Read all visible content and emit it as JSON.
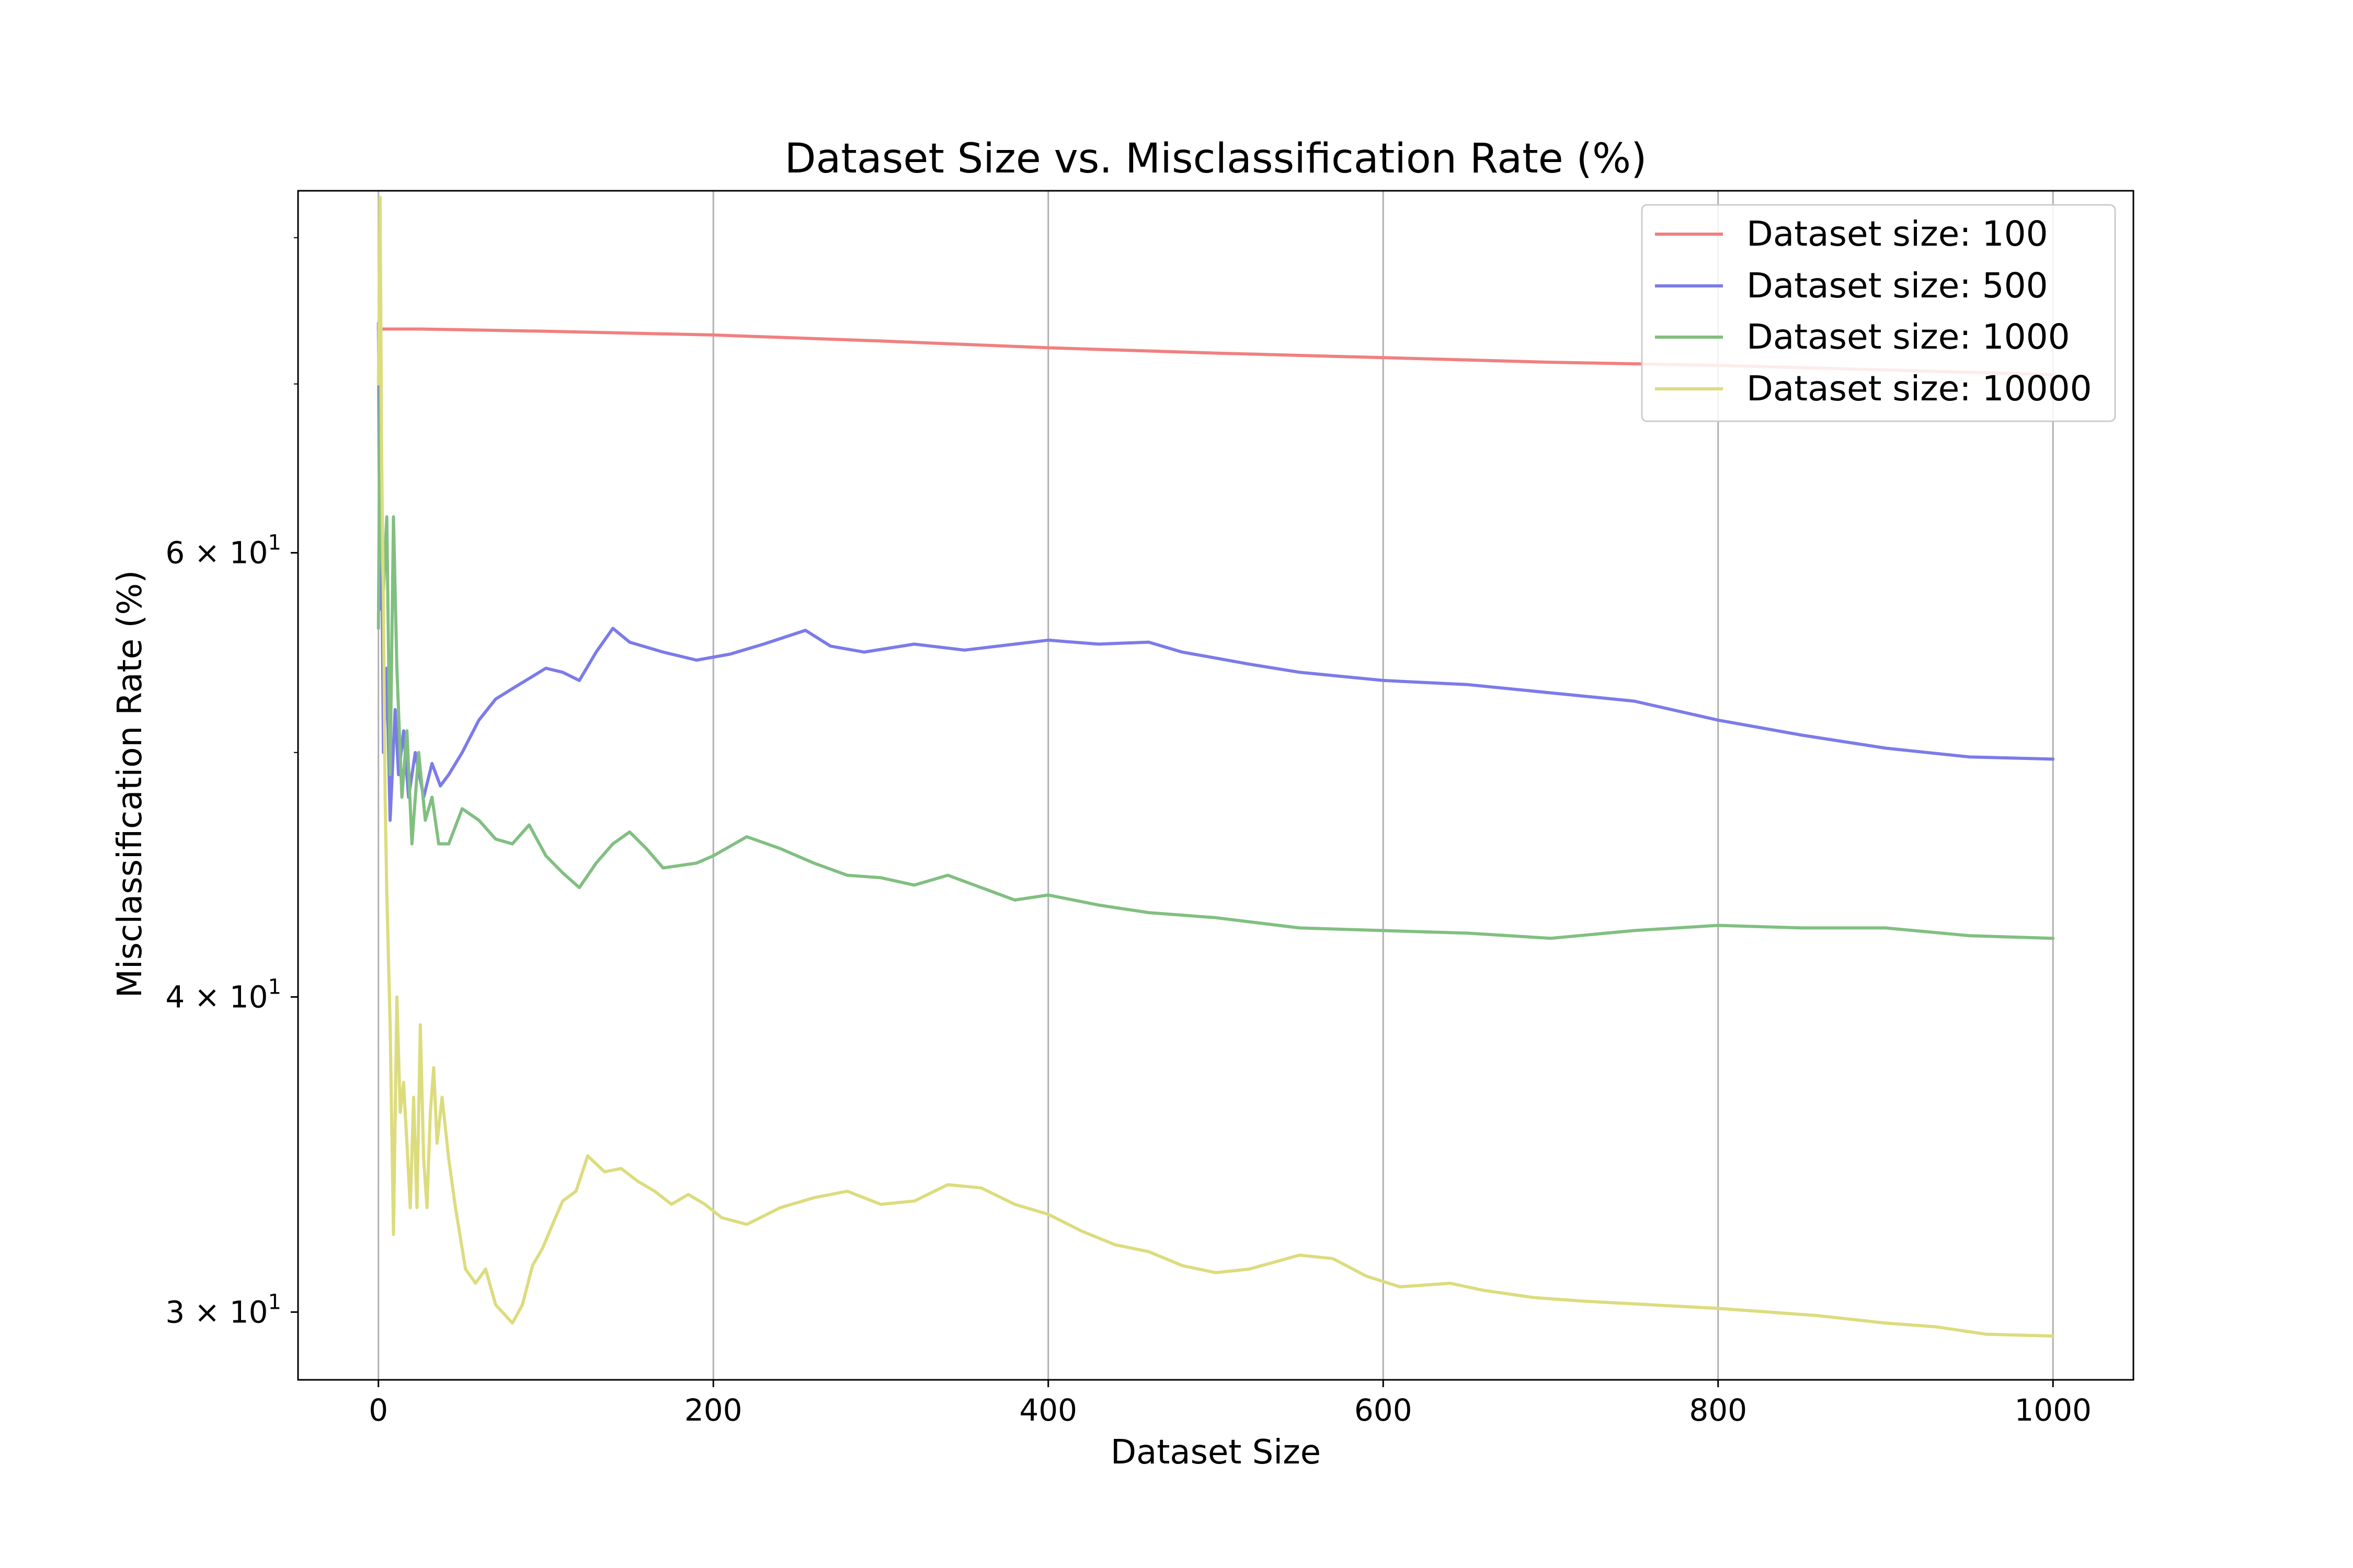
{
  "chart_data": {
    "type": "line",
    "title": "Dataset Size vs. Misclassification Rate (%)",
    "xlabel": "Dataset Size",
    "ylabel": "Misclassification Rate (%)",
    "xlim": [
      -48,
      1048
    ],
    "ylim": [
      28.2,
      83.5
    ],
    "yscale": "log",
    "grid": "vertical",
    "legend_position": "top-right",
    "x_ticks": [
      {
        "value": 0,
        "label": "0"
      },
      {
        "value": 200,
        "label": "200"
      },
      {
        "value": 400,
        "label": "400"
      },
      {
        "value": 600,
        "label": "600"
      },
      {
        "value": 800,
        "label": "800"
      },
      {
        "value": 1000,
        "label": "1000"
      }
    ],
    "y_ticks": [
      {
        "value": 30,
        "mantissa": "3",
        "times": "×",
        "base": "10",
        "exp": "1"
      },
      {
        "value": 40,
        "mantissa": "4",
        "times": "×",
        "base": "10",
        "exp": "1"
      },
      {
        "value": 60,
        "mantissa": "6",
        "times": "×",
        "base": "10",
        "exp": "1"
      }
    ],
    "y_minor_ticks": [
      50,
      70,
      80
    ],
    "series": [
      {
        "name": "Dataset size: 100",
        "color": "#f08080",
        "points": [
          [
            0,
            73.6
          ],
          [
            1,
            73.6
          ],
          [
            25,
            73.6
          ],
          [
            100,
            73.45
          ],
          [
            200,
            73.2
          ],
          [
            300,
            72.8
          ],
          [
            400,
            72.35
          ],
          [
            500,
            72.0
          ],
          [
            600,
            71.7
          ],
          [
            700,
            71.4
          ],
          [
            800,
            71.2
          ],
          [
            900,
            70.9
          ],
          [
            1000,
            70.6
          ]
        ]
      },
      {
        "name": "Dataset size: 500",
        "color": "#7b7bea",
        "points": [
          [
            0,
            74
          ],
          [
            1,
            57
          ],
          [
            2,
            60
          ],
          [
            3,
            50
          ],
          [
            5,
            54
          ],
          [
            7,
            47
          ],
          [
            10,
            52
          ],
          [
            12,
            49
          ],
          [
            15,
            51
          ],
          [
            18,
            48
          ],
          [
            22,
            50
          ],
          [
            27,
            48
          ],
          [
            32,
            49.5
          ],
          [
            37,
            48.5
          ],
          [
            42,
            49
          ],
          [
            50,
            50
          ],
          [
            60,
            51.5
          ],
          [
            70,
            52.5
          ],
          [
            80,
            53
          ],
          [
            90,
            53.5
          ],
          [
            100,
            54
          ],
          [
            110,
            53.8
          ],
          [
            120,
            53.4
          ],
          [
            130,
            54.8
          ],
          [
            140,
            56
          ],
          [
            150,
            55.3
          ],
          [
            170,
            54.8
          ],
          [
            190,
            54.4
          ],
          [
            210,
            54.7
          ],
          [
            230,
            55.2
          ],
          [
            255,
            55.9
          ],
          [
            270,
            55.1
          ],
          [
            290,
            54.8
          ],
          [
            320,
            55.2
          ],
          [
            350,
            54.9
          ],
          [
            380,
            55.2
          ],
          [
            400,
            55.4
          ],
          [
            430,
            55.2
          ],
          [
            460,
            55.3
          ],
          [
            480,
            54.8
          ],
          [
            500,
            54.5
          ],
          [
            520,
            54.2
          ],
          [
            550,
            53.8
          ],
          [
            600,
            53.4
          ],
          [
            650,
            53.2
          ],
          [
            700,
            52.8
          ],
          [
            750,
            52.4
          ],
          [
            800,
            51.5
          ],
          [
            850,
            50.8
          ],
          [
            900,
            50.2
          ],
          [
            950,
            49.8
          ],
          [
            1000,
            49.7
          ]
        ]
      },
      {
        "name": "Dataset size: 1000",
        "color": "#81bf81",
        "points": [
          [
            0,
            56
          ],
          [
            1,
            70
          ],
          [
            2,
            60
          ],
          [
            3,
            58
          ],
          [
            5,
            62
          ],
          [
            7,
            49
          ],
          [
            9,
            62
          ],
          [
            11,
            54
          ],
          [
            14,
            48
          ],
          [
            17,
            51
          ],
          [
            20,
            46
          ],
          [
            24,
            50
          ],
          [
            28,
            47
          ],
          [
            32,
            48
          ],
          [
            36,
            46
          ],
          [
            42,
            46
          ],
          [
            50,
            47.5
          ],
          [
            60,
            47
          ],
          [
            70,
            46.2
          ],
          [
            80,
            46
          ],
          [
            90,
            46.8
          ],
          [
            100,
            45.5
          ],
          [
            110,
            44.8
          ],
          [
            120,
            44.2
          ],
          [
            130,
            45.2
          ],
          [
            140,
            46
          ],
          [
            150,
            46.5
          ],
          [
            160,
            45.8
          ],
          [
            170,
            45
          ],
          [
            190,
            45.2
          ],
          [
            200,
            45.5
          ],
          [
            220,
            46.3
          ],
          [
            240,
            45.8
          ],
          [
            260,
            45.2
          ],
          [
            280,
            44.7
          ],
          [
            300,
            44.6
          ],
          [
            320,
            44.3
          ],
          [
            340,
            44.7
          ],
          [
            360,
            44.2
          ],
          [
            380,
            43.7
          ],
          [
            400,
            43.9
          ],
          [
            430,
            43.5
          ],
          [
            460,
            43.2
          ],
          [
            500,
            43.0
          ],
          [
            550,
            42.6
          ],
          [
            600,
            42.5
          ],
          [
            650,
            42.4
          ],
          [
            700,
            42.2
          ],
          [
            750,
            42.5
          ],
          [
            800,
            42.7
          ],
          [
            850,
            42.6
          ],
          [
            900,
            42.6
          ],
          [
            950,
            42.3
          ],
          [
            1000,
            42.2
          ]
        ]
      },
      {
        "name": "Dataset size: 10000",
        "color": "#dcdc7e",
        "points": [
          [
            0,
            70
          ],
          [
            1,
            83
          ],
          [
            2,
            65
          ],
          [
            3,
            57
          ],
          [
            4,
            48
          ],
          [
            5,
            44
          ],
          [
            7,
            39
          ],
          [
            9,
            32.2
          ],
          [
            11,
            40
          ],
          [
            13,
            36
          ],
          [
            15,
            37
          ],
          [
            17,
            35
          ],
          [
            19,
            33
          ],
          [
            21,
            36.5
          ],
          [
            23,
            33
          ],
          [
            25,
            39
          ],
          [
            27,
            34.5
          ],
          [
            29,
            33
          ],
          [
            31,
            36
          ],
          [
            33,
            37.5
          ],
          [
            35,
            35
          ],
          [
            38,
            36.5
          ],
          [
            42,
            34.5
          ],
          [
            46,
            33
          ],
          [
            52,
            31.2
          ],
          [
            58,
            30.8
          ],
          [
            64,
            31.2
          ],
          [
            70,
            30.2
          ],
          [
            76,
            29.9
          ],
          [
            80,
            29.7
          ],
          [
            86,
            30.2
          ],
          [
            92,
            31.3
          ],
          [
            98,
            31.8
          ],
          [
            104,
            32.5
          ],
          [
            110,
            33.2
          ],
          [
            118,
            33.5
          ],
          [
            125,
            34.6
          ],
          [
            135,
            34.1
          ],
          [
            145,
            34.2
          ],
          [
            155,
            33.8
          ],
          [
            165,
            33.5
          ],
          [
            175,
            33.1
          ],
          [
            185,
            33.4
          ],
          [
            195,
            33.1
          ],
          [
            205,
            32.7
          ],
          [
            220,
            32.5
          ],
          [
            240,
            33.0
          ],
          [
            260,
            33.3
          ],
          [
            280,
            33.5
          ],
          [
            300,
            33.1
          ],
          [
            320,
            33.2
          ],
          [
            340,
            33.7
          ],
          [
            360,
            33.6
          ],
          [
            380,
            33.1
          ],
          [
            400,
            32.8
          ],
          [
            420,
            32.3
          ],
          [
            440,
            31.9
          ],
          [
            460,
            31.7
          ],
          [
            480,
            31.3
          ],
          [
            500,
            31.1
          ],
          [
            520,
            31.2
          ],
          [
            550,
            31.6
          ],
          [
            570,
            31.5
          ],
          [
            590,
            31.0
          ],
          [
            610,
            30.7
          ],
          [
            640,
            30.8
          ],
          [
            660,
            30.6
          ],
          [
            690,
            30.4
          ],
          [
            720,
            30.3
          ],
          [
            760,
            30.2
          ],
          [
            800,
            30.1
          ],
          [
            830,
            30.0
          ],
          [
            860,
            29.9
          ],
          [
            900,
            29.7
          ],
          [
            930,
            29.6
          ],
          [
            960,
            29.4
          ],
          [
            1000,
            29.35
          ]
        ]
      }
    ]
  }
}
